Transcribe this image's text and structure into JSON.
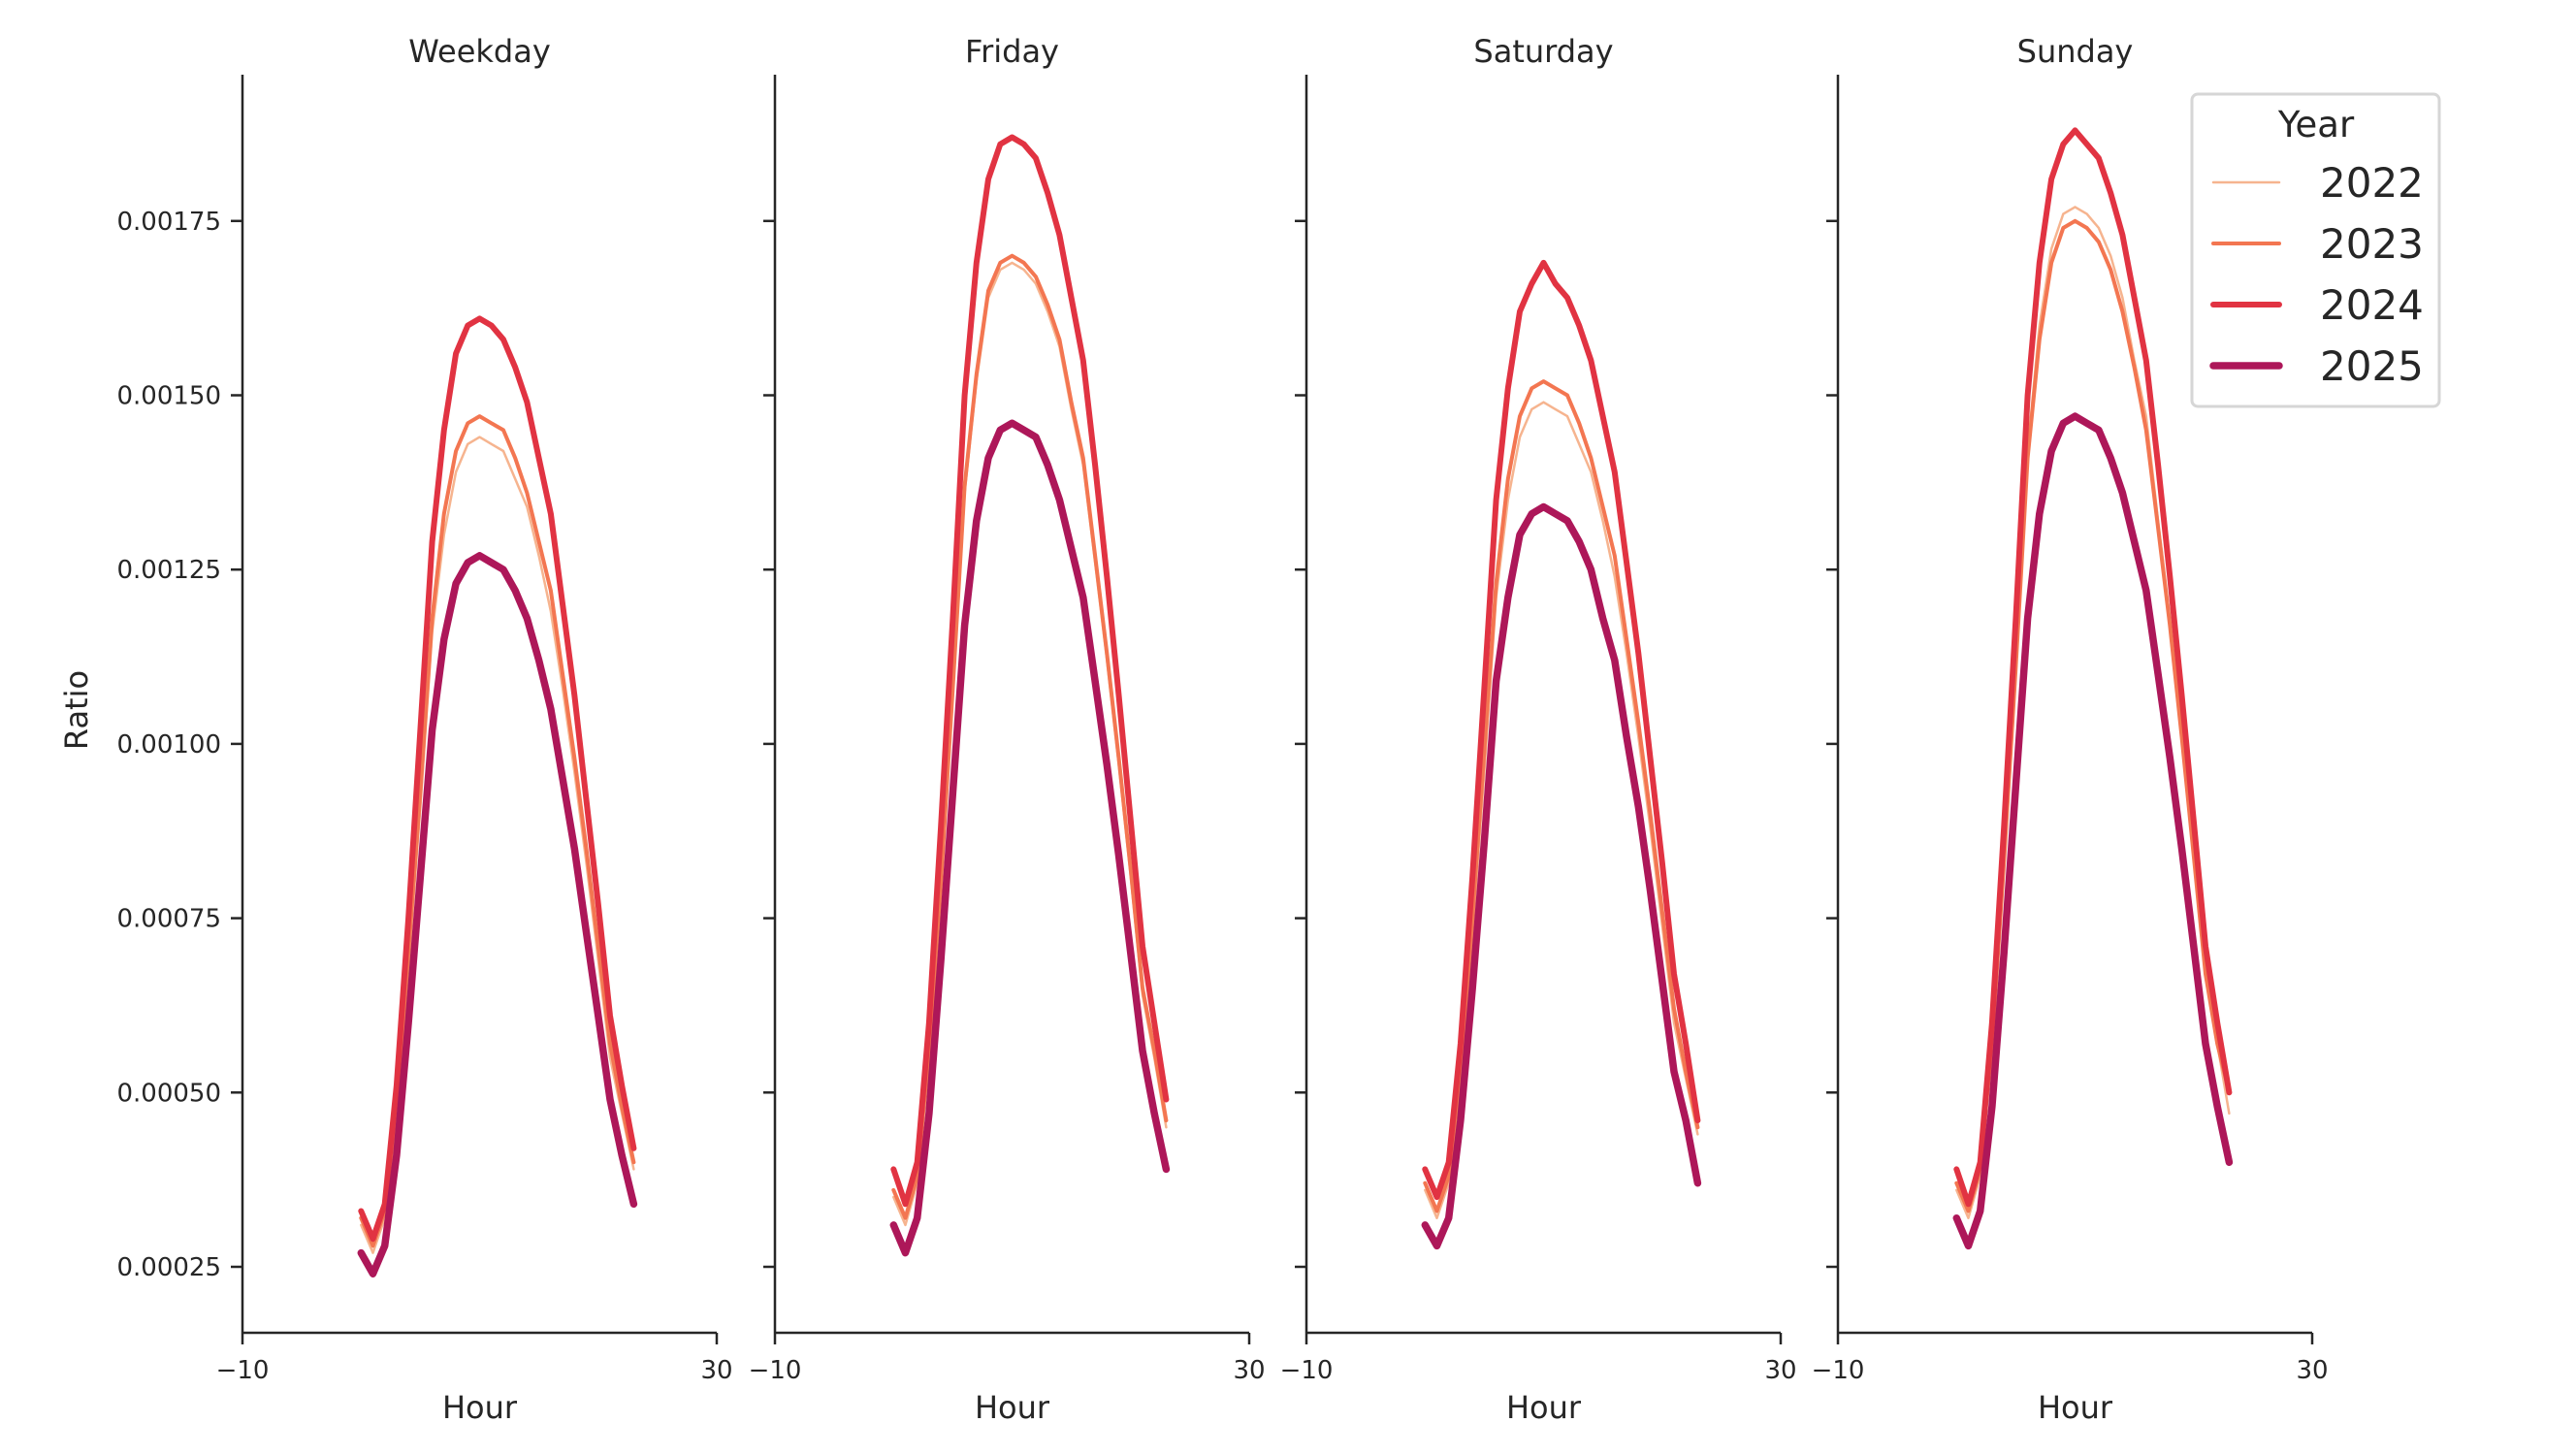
{
  "chart_data": [
    {
      "type": "line",
      "title": "Weekday",
      "xlabel": "Hour",
      "ylabel": "Ratio",
      "xlim": [
        -10,
        30
      ],
      "ylim": [
        0.00015,
        0.00193
      ],
      "xticks": [
        "−10",
        "30"
      ],
      "yticks": [
        "0.00025",
        "0.00050",
        "0.00075",
        "0.00100",
        "0.00125",
        "0.00150",
        "0.00175"
      ],
      "grid": false,
      "x": [
        0,
        1,
        2,
        3,
        4,
        5,
        6,
        7,
        8,
        9,
        10,
        11,
        12,
        13,
        14,
        15,
        16,
        17,
        18,
        19,
        20,
        21,
        22,
        23
      ],
      "series": [
        {
          "name": "2022",
          "values": [
            0.00031,
            0.00027,
            0.00032,
            0.00047,
            0.00068,
            0.00091,
            0.00116,
            0.0013,
            0.00139,
            0.00143,
            0.00144,
            0.00143,
            0.00142,
            0.00138,
            0.00134,
            0.00127,
            0.00119,
            0.00108,
            0.00096,
            0.00083,
            0.00069,
            0.00055,
            0.00047,
            0.00039
          ]
        },
        {
          "name": "2023",
          "values": [
            0.00032,
            0.00028,
            0.00033,
            0.00048,
            0.0007,
            0.00093,
            0.00118,
            0.00133,
            0.00142,
            0.00146,
            0.00147,
            0.00146,
            0.00145,
            0.00141,
            0.00136,
            0.00129,
            0.00122,
            0.0011,
            0.00098,
            0.00085,
            0.00071,
            0.00057,
            0.00048,
            0.0004
          ]
        },
        {
          "name": "2024",
          "values": [
            0.00033,
            0.00029,
            0.00034,
            0.00051,
            0.00075,
            0.00102,
            0.00129,
            0.00145,
            0.00156,
            0.0016,
            0.00161,
            0.0016,
            0.00158,
            0.00154,
            0.00149,
            0.00141,
            0.00133,
            0.0012,
            0.00107,
            0.00092,
            0.00077,
            0.00061,
            0.00051,
            0.00042
          ]
        },
        {
          "name": "2025",
          "values": [
            0.00027,
            0.00024,
            0.00028,
            0.00041,
            0.0006,
            0.00081,
            0.00102,
            0.00115,
            0.00123,
            0.00126,
            0.00127,
            0.00126,
            0.00125,
            0.00122,
            0.00118,
            0.00112,
            0.00105,
            0.00095,
            0.00085,
            0.00073,
            0.00061,
            0.00049,
            0.00041,
            0.00034
          ]
        }
      ]
    },
    {
      "type": "line",
      "title": "Friday",
      "xlabel": "Hour",
      "ylabel": "",
      "xlim": [
        -10,
        30
      ],
      "ylim": [
        0.00015,
        0.00193
      ],
      "xticks": [
        "−10",
        "30"
      ],
      "grid": false,
      "x": [
        0,
        1,
        2,
        3,
        4,
        5,
        6,
        7,
        8,
        9,
        10,
        11,
        12,
        13,
        14,
        15,
        16,
        17,
        18,
        19,
        20,
        21,
        22,
        23
      ],
      "series": [
        {
          "name": "2022",
          "values": [
            0.00035,
            0.00031,
            0.00037,
            0.00055,
            0.00079,
            0.00107,
            0.00136,
            0.00152,
            0.00164,
            0.00168,
            0.00169,
            0.00168,
            0.00166,
            0.00162,
            0.00157,
            0.00148,
            0.0014,
            0.00126,
            0.00112,
            0.00097,
            0.00081,
            0.00064,
            0.00055,
            0.00045
          ]
        },
        {
          "name": "2023",
          "values": [
            0.00036,
            0.00032,
            0.00038,
            0.00056,
            0.0008,
            0.00108,
            0.00137,
            0.00153,
            0.00165,
            0.00169,
            0.0017,
            0.00169,
            0.00167,
            0.00163,
            0.00158,
            0.00149,
            0.00141,
            0.00127,
            0.00113,
            0.00098,
            0.00082,
            0.00065,
            0.00056,
            0.00046
          ]
        },
        {
          "name": "2024",
          "values": [
            0.00039,
            0.00034,
            0.0004,
            0.0006,
            0.00088,
            0.00118,
            0.0015,
            0.00169,
            0.00181,
            0.00186,
            0.00187,
            0.00186,
            0.00184,
            0.00179,
            0.00173,
            0.00164,
            0.00155,
            0.0014,
            0.00124,
            0.00107,
            0.00089,
            0.00071,
            0.0006,
            0.00049
          ]
        },
        {
          "name": "2025",
          "values": [
            0.00031,
            0.00027,
            0.00032,
            0.00047,
            0.00069,
            0.00093,
            0.00117,
            0.00132,
            0.00141,
            0.00145,
            0.00146,
            0.00145,
            0.00144,
            0.0014,
            0.00135,
            0.00128,
            0.00121,
            0.00109,
            0.00097,
            0.00084,
            0.0007,
            0.00056,
            0.00047,
            0.00039
          ]
        }
      ]
    },
    {
      "type": "line",
      "title": "Saturday",
      "xlabel": "Hour",
      "ylabel": "",
      "xlim": [
        -10,
        30
      ],
      "ylim": [
        0.00015,
        0.00193
      ],
      "xticks": [
        "−10",
        "30"
      ],
      "grid": false,
      "x": [
        0,
        1,
        2,
        3,
        4,
        5,
        6,
        7,
        8,
        9,
        10,
        11,
        12,
        13,
        14,
        15,
        16,
        17,
        18,
        19,
        20,
        21,
        22,
        23
      ],
      "series": [
        {
          "name": "2022",
          "values": [
            0.00036,
            0.00032,
            0.00037,
            0.00052,
            0.00073,
            0.00096,
            0.00121,
            0.00135,
            0.00144,
            0.00148,
            0.00149,
            0.00148,
            0.00147,
            0.00143,
            0.00139,
            0.00132,
            0.00124,
            0.00113,
            0.00101,
            0.00088,
            0.00074,
            0.0006,
            0.00052,
            0.00044
          ]
        },
        {
          "name": "2023",
          "values": [
            0.00037,
            0.00033,
            0.00038,
            0.00053,
            0.00075,
            0.00099,
            0.00123,
            0.00138,
            0.00147,
            0.00151,
            0.00152,
            0.00151,
            0.0015,
            0.00146,
            0.00141,
            0.00134,
            0.00127,
            0.00115,
            0.00103,
            0.0009,
            0.00076,
            0.00062,
            0.00053,
            0.00045
          ]
        },
        {
          "name": "2024",
          "values": [
            0.00039,
            0.00035,
            0.0004,
            0.00057,
            0.00081,
            0.00108,
            0.00135,
            0.00151,
            0.00162,
            0.00166,
            0.00169,
            0.00166,
            0.00164,
            0.0016,
            0.00155,
            0.00147,
            0.00139,
            0.00126,
            0.00113,
            0.00098,
            0.00083,
            0.00067,
            0.00057,
            0.00046
          ]
        },
        {
          "name": "2025",
          "values": [
            0.00031,
            0.00028,
            0.00032,
            0.00046,
            0.00065,
            0.00086,
            0.00109,
            0.00121,
            0.0013,
            0.00133,
            0.00134,
            0.00133,
            0.00132,
            0.00129,
            0.00125,
            0.00118,
            0.00112,
            0.00101,
            0.00091,
            0.00079,
            0.00066,
            0.00053,
            0.00046,
            0.00037
          ]
        }
      ]
    },
    {
      "type": "line",
      "title": "Sunday",
      "xlabel": "Hour",
      "ylabel": "",
      "xlim": [
        -10,
        30
      ],
      "ylim": [
        0.00015,
        0.00193
      ],
      "xticks": [
        "−10",
        "30"
      ],
      "grid": false,
      "x": [
        0,
        1,
        2,
        3,
        4,
        5,
        6,
        7,
        8,
        9,
        10,
        11,
        12,
        13,
        14,
        15,
        16,
        17,
        18,
        19,
        20,
        21,
        22,
        23
      ],
      "series": [
        {
          "name": "2022",
          "values": [
            0.00036,
            0.00032,
            0.00038,
            0.00057,
            0.00083,
            0.00112,
            0.00142,
            0.0016,
            0.00171,
            0.00176,
            0.00177,
            0.00176,
            0.00174,
            0.0017,
            0.00164,
            0.00155,
            0.00147,
            0.00132,
            0.00118,
            0.00102,
            0.00084,
            0.00067,
            0.00057,
            0.00047
          ]
        },
        {
          "name": "2023",
          "values": [
            0.00037,
            0.00033,
            0.00039,
            0.00057,
            0.00083,
            0.00111,
            0.00141,
            0.00158,
            0.00169,
            0.00174,
            0.00175,
            0.00174,
            0.00172,
            0.00168,
            0.00162,
            0.00154,
            0.00145,
            0.00131,
            0.00117,
            0.00101,
            0.00084,
            0.00067,
            0.00057,
            0.0005
          ]
        },
        {
          "name": "2024",
          "values": [
            0.00039,
            0.00034,
            0.0004,
            0.0006,
            0.00088,
            0.00118,
            0.0015,
            0.00169,
            0.00181,
            0.00186,
            0.00188,
            0.00186,
            0.00184,
            0.00179,
            0.00173,
            0.00164,
            0.00155,
            0.0014,
            0.00124,
            0.00107,
            0.00089,
            0.00071,
            0.0006,
            0.0005
          ]
        },
        {
          "name": "2025",
          "values": [
            0.00032,
            0.00028,
            0.00033,
            0.00048,
            0.0007,
            0.00094,
            0.00118,
            0.00133,
            0.00142,
            0.00146,
            0.00147,
            0.00146,
            0.00145,
            0.00141,
            0.00136,
            0.00129,
            0.00122,
            0.0011,
            0.00098,
            0.00085,
            0.00071,
            0.00057,
            0.00048,
            0.0004
          ]
        }
      ]
    }
  ],
  "legend": {
    "title": "Year",
    "placement": "top-right",
    "items": [
      {
        "label": "2022",
        "color": "#f6b48f"
      },
      {
        "label": "2023",
        "color": "#f37651"
      },
      {
        "label": "2024",
        "color": "#e13342"
      },
      {
        "label": "2025",
        "color": "#ad1759"
      }
    ]
  }
}
